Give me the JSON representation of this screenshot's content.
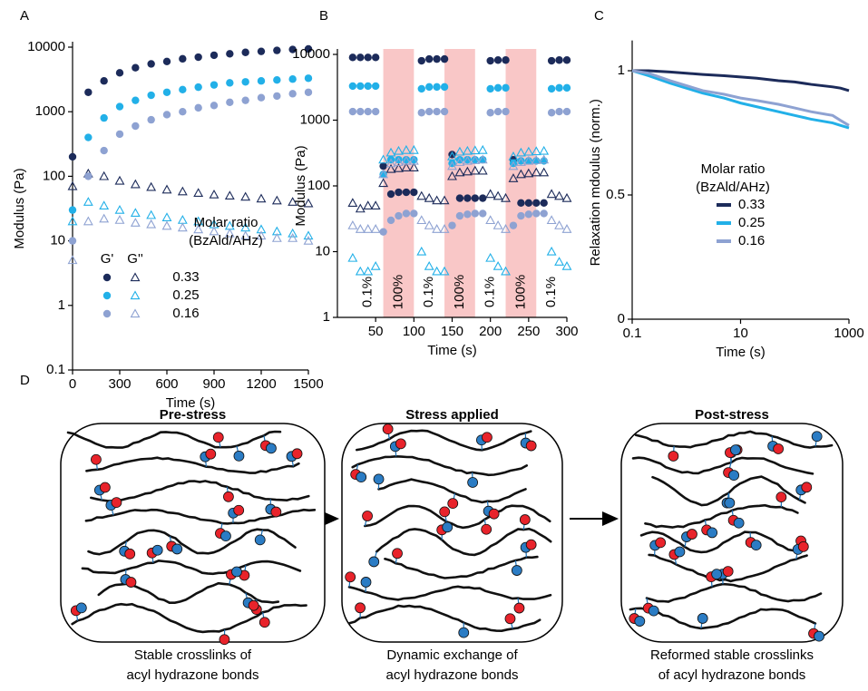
{
  "chart_data": [
    {
      "type": "scatter",
      "panel_label": "A",
      "ylog": true,
      "x_label": "Time (s)",
      "y_label": "Modulus (Pa)",
      "x": [
        0,
        100,
        200,
        300,
        400,
        500,
        600,
        700,
        800,
        900,
        1000,
        1100,
        1200,
        1300,
        1400,
        1500
      ],
      "xlim": [
        0,
        1500
      ],
      "xticks": [
        0,
        300,
        600,
        900,
        1200,
        1500
      ],
      "ylim": [
        0.1,
        10000
      ],
      "yticks": [
        0.1,
        1,
        10,
        100,
        1000,
        10000
      ],
      "legend": {
        "title": [
          "Molar ratio",
          "(BzAld/AHz)"
        ],
        "headers": [
          "G'",
          "G''"
        ]
      },
      "series": [
        {
          "name": "0.33",
          "color": "#1c2b5a",
          "storage": [
            200,
            2000,
            3000,
            4000,
            4800,
            5500,
            6000,
            6600,
            7000,
            7500,
            7900,
            8300,
            8600,
            8900,
            9200,
            9400
          ],
          "loss": [
            70,
            110,
            100,
            85,
            75,
            68,
            62,
            58,
            55,
            52,
            50,
            48,
            45,
            42,
            40,
            38
          ]
        },
        {
          "name": "0.25",
          "color": "#22b0e8",
          "storage": [
            30,
            400,
            800,
            1200,
            1500,
            1800,
            2000,
            2200,
            2400,
            2600,
            2800,
            2900,
            3000,
            3100,
            3200,
            3300
          ],
          "loss": [
            20,
            40,
            35,
            30,
            27,
            25,
            23,
            21,
            20,
            18,
            17,
            16,
            15,
            14,
            13,
            12
          ]
        },
        {
          "name": "0.16",
          "color": "#8ea2d2",
          "storage": [
            10,
            100,
            250,
            450,
            600,
            750,
            900,
            1000,
            1150,
            1250,
            1400,
            1500,
            1650,
            1750,
            1900,
            2000
          ],
          "loss": [
            5,
            20,
            22,
            21,
            19,
            18,
            17,
            16,
            15,
            14,
            13,
            12,
            12,
            11,
            11,
            10
          ]
        }
      ]
    },
    {
      "type": "scatter",
      "panel_label": "B",
      "ylog": true,
      "x_label": "Time (s)",
      "y_label": "Modulus (Pa)",
      "x": [
        20,
        30,
        40,
        50,
        60,
        70,
        80,
        90,
        100,
        110,
        120,
        130,
        140,
        150,
        160,
        170,
        180,
        190,
        200,
        210,
        220,
        230,
        240,
        250,
        260,
        270,
        280,
        290,
        300
      ],
      "xlim": [
        0,
        300
      ],
      "xticks": [
        50,
        100,
        150,
        200,
        250,
        300
      ],
      "ylim": [
        1,
        10000
      ],
      "yticks": [
        1,
        10,
        100,
        1000,
        10000
      ],
      "bands": [
        [
          60,
          100
        ],
        [
          140,
          180
        ],
        [
          220,
          260
        ]
      ],
      "band_color": "#f9c7c7",
      "annotations": [
        "0.1%",
        "100%",
        "0.1%",
        "100%",
        "0.1%",
        "100%",
        "0.1%"
      ],
      "series": [
        {
          "name": "0.33",
          "color": "#1c2b5a",
          "storage": [
            9000,
            9000,
            9000,
            9000,
            200,
            75,
            80,
            80,
            80,
            8000,
            8500,
            8500,
            8500,
            300,
            65,
            65,
            65,
            65,
            8000,
            8200,
            8200,
            250,
            55,
            55,
            55,
            55,
            8000,
            8200,
            8200
          ],
          "loss": [
            55,
            45,
            50,
            50,
            110,
            180,
            185,
            190,
            190,
            70,
            65,
            60,
            60,
            140,
            160,
            165,
            170,
            170,
            75,
            70,
            65,
            130,
            150,
            155,
            160,
            160,
            75,
            70,
            65
          ]
        },
        {
          "name": "0.25",
          "color": "#22b0e8",
          "storage": [
            3300,
            3300,
            3300,
            3300,
            150,
            250,
            250,
            250,
            250,
            3000,
            3200,
            3200,
            3200,
            220,
            250,
            250,
            250,
            250,
            3000,
            3100,
            3100,
            220,
            240,
            240,
            240,
            240,
            3000,
            3100,
            3100
          ],
          "loss": [
            8,
            5,
            5,
            6,
            250,
            320,
            340,
            350,
            350,
            10,
            6,
            5,
            5,
            280,
            330,
            340,
            345,
            350,
            8,
            6,
            5,
            280,
            320,
            330,
            335,
            340,
            10,
            7,
            6
          ]
        },
        {
          "name": "0.16",
          "color": "#8ea2d2",
          "storage": [
            1350,
            1350,
            1350,
            1350,
            20,
            30,
            35,
            38,
            38,
            1300,
            1350,
            1350,
            1350,
            25,
            35,
            37,
            38,
            38,
            1300,
            1350,
            1350,
            25,
            35,
            37,
            38,
            38,
            1300,
            1350,
            1350
          ],
          "loss": [
            25,
            22,
            22,
            22,
            150,
            220,
            230,
            240,
            240,
            30,
            25,
            22,
            22,
            200,
            230,
            240,
            245,
            250,
            30,
            25,
            22,
            200,
            230,
            240,
            245,
            250,
            30,
            25,
            22
          ]
        }
      ]
    },
    {
      "type": "line",
      "panel_label": "C",
      "xlog": true,
      "x_label": "Time (s)",
      "y_label": "Relaxation mdoulus (norm.)",
      "x": [
        0.1,
        0.2,
        0.5,
        1,
        2,
        5,
        10,
        20,
        50,
        100,
        200,
        500,
        700,
        1000
      ],
      "xlim": [
        0.1,
        1000
      ],
      "xticks": [
        0.1,
        10,
        1000
      ],
      "ylim": [
        0,
        1.1
      ],
      "yticks": [
        0,
        0.5,
        1
      ],
      "legend": {
        "title": [
          "Molar ratio",
          "(BzAld/AHz)"
        ]
      },
      "series": [
        {
          "name": "0.33",
          "color": "#1c2b5a",
          "values": [
            1,
            1,
            0.995,
            0.99,
            0.985,
            0.98,
            0.975,
            0.97,
            0.96,
            0.955,
            0.945,
            0.935,
            0.93,
            0.92
          ]
        },
        {
          "name": "0.25",
          "color": "#22b0e8",
          "values": [
            1,
            0.98,
            0.95,
            0.93,
            0.91,
            0.89,
            0.87,
            0.855,
            0.835,
            0.82,
            0.805,
            0.79,
            0.78,
            0.77
          ]
        },
        {
          "name": "0.16",
          "color": "#8ea2d2",
          "values": [
            1,
            0.99,
            0.96,
            0.94,
            0.92,
            0.905,
            0.89,
            0.88,
            0.865,
            0.85,
            0.835,
            0.82,
            0.8,
            0.78
          ]
        }
      ]
    }
  ],
  "diagram": {
    "label": "D",
    "panels": [
      {
        "title": "Pre-stress",
        "caption": [
          "Stable crosslinks of",
          "acyl hydrazone bonds"
        ]
      },
      {
        "title": "Stress applied",
        "caption": [
          "Dynamic exchange of",
          "acyl hydrazone bonds"
        ]
      },
      {
        "title": "Post-stress",
        "caption": [
          "Reformed stable crosslinks",
          "of acyl hydrazone bonds"
        ]
      }
    ]
  }
}
